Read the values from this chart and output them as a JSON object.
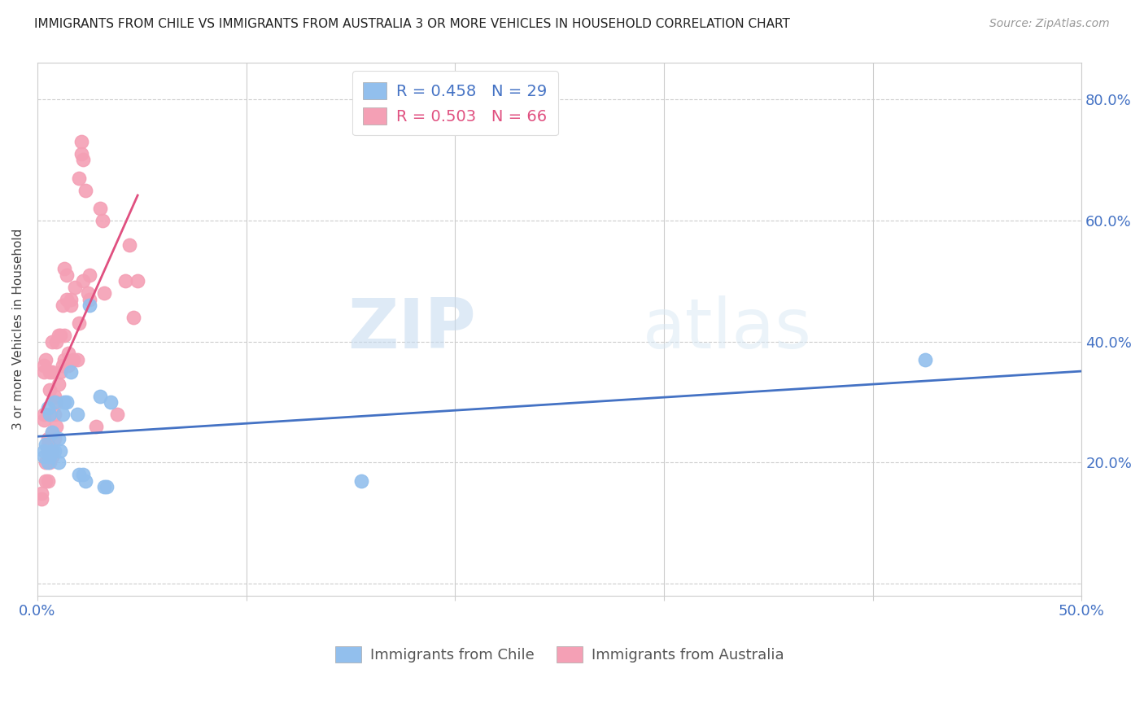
{
  "title": "IMMIGRANTS FROM CHILE VS IMMIGRANTS FROM AUSTRALIA 3 OR MORE VEHICLES IN HOUSEHOLD CORRELATION CHART",
  "source": "Source: ZipAtlas.com",
  "ylabel_text": "3 or more Vehicles in Household",
  "xlim": [
    0.0,
    0.5
  ],
  "ylim": [
    -0.02,
    0.86
  ],
  "x_ticks": [
    0.0,
    0.1,
    0.2,
    0.3,
    0.4,
    0.5
  ],
  "x_tick_labels": [
    "0.0%",
    "",
    "",
    "",
    "",
    "50.0%"
  ],
  "y_ticks": [
    0.0,
    0.2,
    0.4,
    0.6,
    0.8
  ],
  "y_tick_labels_left": [
    "",
    "",
    "",
    "",
    ""
  ],
  "y_tick_labels_right": [
    "",
    "20.0%",
    "40.0%",
    "60.0%",
    "80.0%"
  ],
  "chile_color": "#92BFED",
  "australia_color": "#F4A0B5",
  "chile_R": 0.458,
  "chile_N": 29,
  "australia_R": 0.503,
  "australia_N": 66,
  "chile_line_color": "#4472C4",
  "australia_line_color": "#E05080",
  "legend_chile_text_color": "#4472C4",
  "legend_australia_text_color": "#E05080",
  "grid_color": "#CCCCCC",
  "tick_color": "#4472C4",
  "chile_x": [
    0.003,
    0.003,
    0.004,
    0.005,
    0.005,
    0.006,
    0.006,
    0.007,
    0.007,
    0.008,
    0.008,
    0.01,
    0.01,
    0.011,
    0.012,
    0.013,
    0.014,
    0.016,
    0.019,
    0.02,
    0.022,
    0.023,
    0.025,
    0.03,
    0.032,
    0.033,
    0.035,
    0.155,
    0.425
  ],
  "chile_y": [
    0.21,
    0.22,
    0.23,
    0.2,
    0.29,
    0.21,
    0.28,
    0.22,
    0.25,
    0.22,
    0.3,
    0.2,
    0.24,
    0.22,
    0.28,
    0.3,
    0.3,
    0.35,
    0.28,
    0.18,
    0.18,
    0.17,
    0.46,
    0.31,
    0.16,
    0.16,
    0.3,
    0.17,
    0.37
  ],
  "australia_x": [
    0.002,
    0.002,
    0.003,
    0.003,
    0.003,
    0.003,
    0.004,
    0.004,
    0.004,
    0.005,
    0.005,
    0.005,
    0.005,
    0.006,
    0.006,
    0.006,
    0.006,
    0.006,
    0.007,
    0.007,
    0.007,
    0.007,
    0.007,
    0.008,
    0.008,
    0.008,
    0.009,
    0.009,
    0.009,
    0.01,
    0.01,
    0.011,
    0.011,
    0.012,
    0.012,
    0.013,
    0.013,
    0.013,
    0.014,
    0.014,
    0.015,
    0.015,
    0.016,
    0.016,
    0.017,
    0.018,
    0.019,
    0.02,
    0.02,
    0.021,
    0.021,
    0.022,
    0.022,
    0.023,
    0.024,
    0.025,
    0.025,
    0.028,
    0.03,
    0.031,
    0.032,
    0.038,
    0.042,
    0.044,
    0.046,
    0.048
  ],
  "australia_y": [
    0.14,
    0.15,
    0.35,
    0.36,
    0.27,
    0.28,
    0.17,
    0.2,
    0.37,
    0.17,
    0.22,
    0.23,
    0.24,
    0.2,
    0.22,
    0.22,
    0.32,
    0.35,
    0.21,
    0.22,
    0.25,
    0.35,
    0.4,
    0.24,
    0.28,
    0.31,
    0.26,
    0.3,
    0.4,
    0.33,
    0.41,
    0.35,
    0.41,
    0.36,
    0.46,
    0.37,
    0.41,
    0.52,
    0.47,
    0.51,
    0.36,
    0.38,
    0.46,
    0.47,
    0.37,
    0.49,
    0.37,
    0.43,
    0.67,
    0.71,
    0.73,
    0.5,
    0.7,
    0.65,
    0.48,
    0.47,
    0.51,
    0.26,
    0.62,
    0.6,
    0.48,
    0.28,
    0.5,
    0.56,
    0.44,
    0.5
  ],
  "watermark_zip": "ZIP",
  "watermark_atlas": "atlas"
}
